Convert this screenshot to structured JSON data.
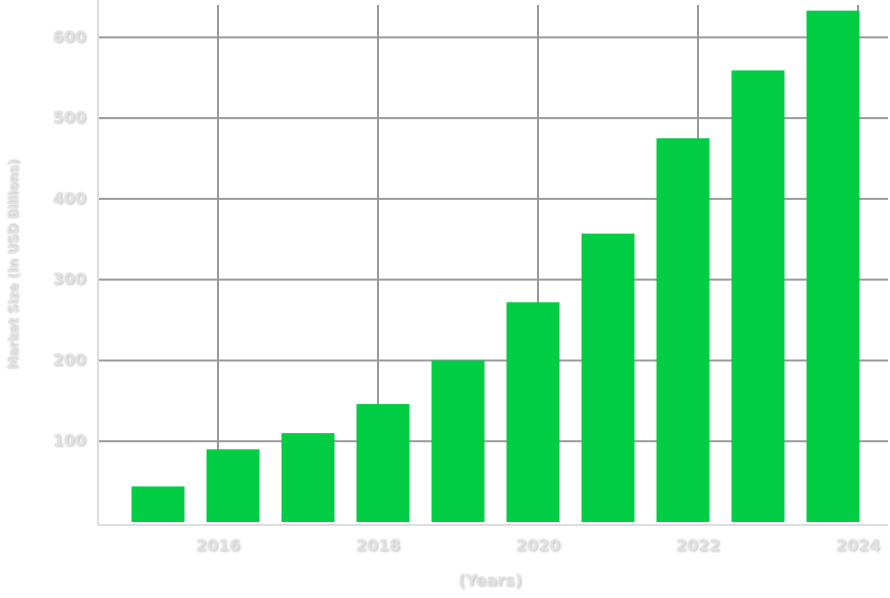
{
  "chart_data": {
    "type": "bar",
    "y_label": "Market Size (In USD Billions)",
    "x_label": "(Years)",
    "x": [
      2015,
      2016,
      2017,
      2018,
      2019,
      2020,
      2021,
      2022,
      2023,
      2024
    ],
    "values": [
      44,
      90,
      110,
      146,
      200,
      272,
      357,
      475,
      559,
      633
    ],
    "color": "#00cc44",
    "ylim": [
      0,
      640
    ],
    "yticks": [
      100,
      200,
      300,
      400,
      500,
      600
    ],
    "xlim": [
      2014.5,
      2024.375
    ],
    "xticks": [
      2016,
      2018,
      2020,
      2022,
      2024
    ],
    "grid": true
  }
}
